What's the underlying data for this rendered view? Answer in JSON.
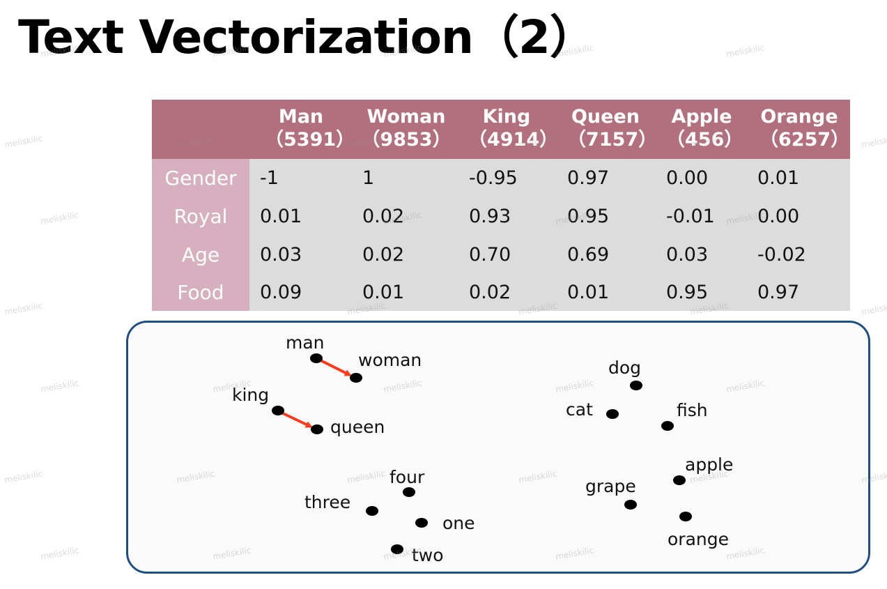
{
  "title": "Text Vectorization（2）",
  "table": {
    "columns": [
      {
        "word": "Man",
        "code": "（5391）"
      },
      {
        "word": "Woman",
        "code": "（9853）"
      },
      {
        "word": "King",
        "code": "（4914）"
      },
      {
        "word": "Queen",
        "code": "（7157）"
      },
      {
        "word": "Apple",
        "code": "（456）"
      },
      {
        "word": "Orange",
        "code": "（6257）"
      }
    ],
    "rows": [
      {
        "label": "Gender",
        "values": [
          "-1",
          "1",
          "-0.95",
          "0.97",
          "0.00",
          "0.01"
        ]
      },
      {
        "label": "Royal",
        "values": [
          "0.01",
          "0.02",
          "0.93",
          "0.95",
          "-0.01",
          "0.00"
        ]
      },
      {
        "label": "Age",
        "values": [
          "0.03",
          "0.02",
          "0.70",
          "0.69",
          "0.03",
          "-0.02"
        ]
      },
      {
        "label": "Food",
        "values": [
          "0.09",
          "0.01",
          "0.02",
          "0.01",
          "0.95",
          "0.97"
        ]
      }
    ]
  },
  "embedding_plot": {
    "words": [
      "man",
      "woman",
      "king",
      "queen",
      "dog",
      "cat",
      "fish",
      "four",
      "three",
      "one",
      "two",
      "apple",
      "grape",
      "orange"
    ],
    "arrows": [
      {
        "from": "man",
        "to": "woman"
      },
      {
        "from": "king",
        "to": "queen"
      }
    ],
    "point_color": "#000000",
    "arrow_color": "#ff3a1a"
  },
  "watermark": "meliskilic",
  "colors": {
    "header_bg": "#b26f7d",
    "row_label_bg": "#d7b0bf",
    "body_bg": "#dcdcdc",
    "panel_border": "#1f4e85"
  }
}
